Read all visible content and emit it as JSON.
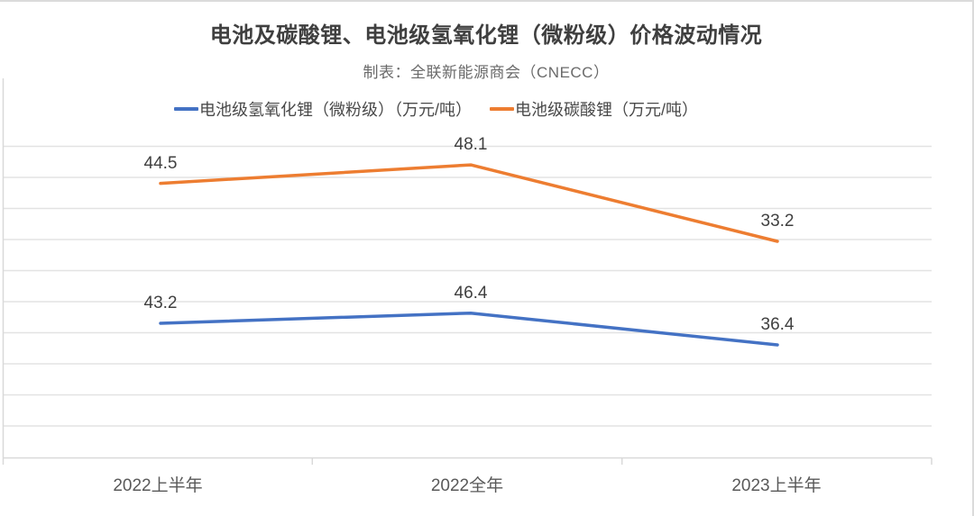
{
  "chart_title": "电池及碳酸锂、电池级氢氧化锂（微粉级）价格波动情况",
  "chart_subtitle": "制表：全联新能源商会（CNECC）",
  "chart_data": {
    "type": "line",
    "categories": [
      "2022上半年",
      "2022全年",
      "2023上半年"
    ],
    "series": [
      {
        "name": "电池级氢氧化锂（微粉级）（万元/吨）",
        "values": [
          43.2,
          46.4,
          36.4
        ],
        "color": "#4472C4"
      },
      {
        "name": "电池级碳酸锂（万元/吨）",
        "values": [
          44.5,
          48.1,
          33.2
        ],
        "color": "#ED7D31"
      }
    ],
    "title": "电池及碳酸锂、电池级氢氧化锂（微粉级）价格波动情况",
    "subtitle": "制表：全联新能源商会（CNECC）",
    "xlabel": "",
    "ylabel": "",
    "y_axis_tick_labels_visible": false,
    "data_labels_visible": true,
    "grid": "horizontal",
    "legend_position": "top",
    "secondary_axis": true
  },
  "colors": {
    "hydroxide_line": "#4472C4",
    "carbonate_line": "#ED7D31",
    "gridline": "#E3E3E3",
    "axis_line": "#D9D9D9",
    "frame_border": "#DBDBDB",
    "title_text": "#3F3F3F",
    "subtitle_text": "#6A6A6A",
    "data_label_text": "#404040",
    "axis_label_text": "#595959"
  }
}
